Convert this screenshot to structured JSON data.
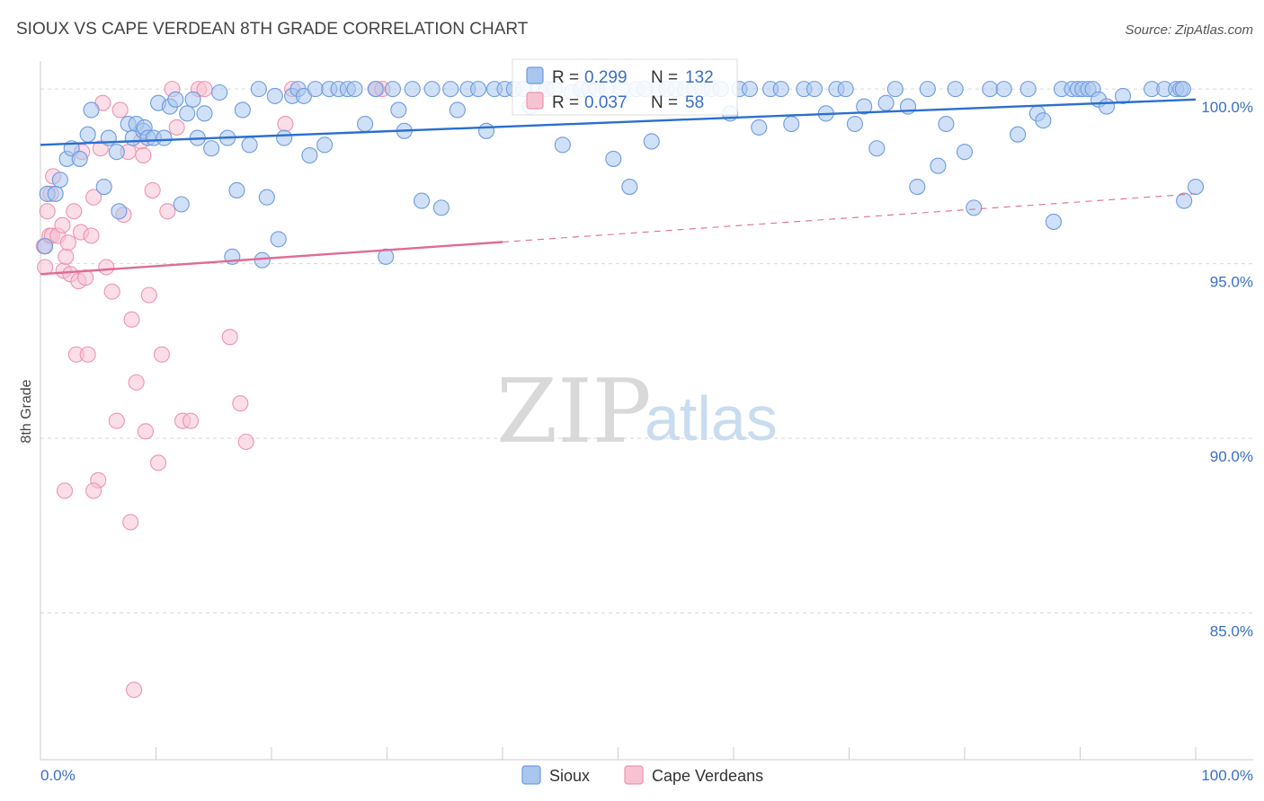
{
  "title": "SIOUX VS CAPE VERDEAN 8TH GRADE CORRELATION CHART",
  "source": "Source: ZipAtlas.com",
  "watermark": {
    "zip": "ZIP",
    "atlas": "atlas"
  },
  "legend": {
    "rows": [
      {
        "r_label": "R =",
        "r_value": "0.299",
        "n_label": "N =",
        "n_value": "132"
      },
      {
        "r_label": "R =",
        "r_value": "0.037",
        "n_label": "N =",
        "n_value": "58"
      }
    ]
  },
  "bottom_legend": [
    "Sioux",
    "Cape Verdeans"
  ],
  "colors": {
    "blue_fill": "#a9c6ee",
    "blue_stroke": "#6d9be0",
    "blue_line": "#2a6fd0",
    "pink_fill": "#f7c3d3",
    "pink_stroke": "#ee93b0",
    "pink_line": "#e06a97",
    "grid": "#d7d7d7",
    "axis_text": "#3a6fc4"
  },
  "chart_data": {
    "type": "scatter",
    "title": "SIOUX VS CAPE VERDEAN 8TH GRADE CORRELATION CHART",
    "xlabel": "",
    "ylabel": "8th Grade",
    "xlim": [
      0,
      100
    ],
    "ylim": [
      80.8,
      100.8
    ],
    "x_tick_labels": [
      "0.0%",
      "100.0%"
    ],
    "y_ticks": [
      {
        "value": 100,
        "label": "100.0%"
      },
      {
        "value": 95,
        "label": "95.0%"
      },
      {
        "value": 90,
        "label": "90.0%"
      },
      {
        "value": 85,
        "label": "85.0%"
      }
    ],
    "series": [
      {
        "name": "Sioux",
        "R": 0.299,
        "N": 132,
        "trend": {
          "x0": 0,
          "y0": 98.4,
          "x1": 100,
          "y1": 99.7,
          "dashed_from": null
        },
        "points": [
          [
            0.4,
            95.5
          ],
          [
            0.6,
            97.0
          ],
          [
            1.3,
            97.0
          ],
          [
            1.7,
            97.4
          ],
          [
            2.3,
            98.0
          ],
          [
            2.7,
            98.3
          ],
          [
            3.4,
            98.0
          ],
          [
            4.1,
            98.7
          ],
          [
            4.4,
            99.4
          ],
          [
            5.5,
            97.2
          ],
          [
            5.9,
            98.6
          ],
          [
            6.6,
            98.2
          ],
          [
            6.8,
            96.5
          ],
          [
            7.6,
            99.0
          ],
          [
            8.0,
            98.6
          ],
          [
            8.3,
            99.0
          ],
          [
            8.9,
            98.8
          ],
          [
            9.0,
            98.9
          ],
          [
            9.3,
            98.6
          ],
          [
            9.8,
            98.6
          ],
          [
            10.2,
            99.6
          ],
          [
            10.7,
            98.6
          ],
          [
            11.2,
            99.5
          ],
          [
            11.7,
            99.7
          ],
          [
            12.2,
            96.7
          ],
          [
            12.7,
            99.3
          ],
          [
            13.2,
            99.7
          ],
          [
            13.6,
            98.6
          ],
          [
            14.2,
            99.3
          ],
          [
            14.8,
            98.3
          ],
          [
            15.5,
            99.9
          ],
          [
            16.2,
            98.6
          ],
          [
            16.6,
            95.2
          ],
          [
            17.0,
            97.1
          ],
          [
            17.5,
            99.4
          ],
          [
            18.1,
            98.4
          ],
          [
            18.9,
            100.0
          ],
          [
            19.2,
            95.1
          ],
          [
            19.6,
            96.9
          ],
          [
            20.3,
            99.8
          ],
          [
            20.6,
            95.7
          ],
          [
            21.1,
            98.6
          ],
          [
            21.8,
            99.8
          ],
          [
            22.3,
            100.0
          ],
          [
            22.8,
            99.8
          ],
          [
            23.3,
            98.1
          ],
          [
            23.8,
            100.0
          ],
          [
            24.6,
            98.4
          ],
          [
            25.0,
            100.0
          ],
          [
            25.8,
            100.0
          ],
          [
            26.6,
            100.0
          ],
          [
            27.2,
            100.0
          ],
          [
            28.1,
            99.0
          ],
          [
            29.0,
            100.0
          ],
          [
            29.9,
            95.2
          ],
          [
            30.5,
            100.0
          ],
          [
            31.0,
            99.4
          ],
          [
            31.5,
            98.8
          ],
          [
            32.2,
            100.0
          ],
          [
            33.0,
            96.8
          ],
          [
            33.9,
            100.0
          ],
          [
            34.7,
            96.6
          ],
          [
            35.5,
            100.0
          ],
          [
            36.1,
            99.4
          ],
          [
            37.0,
            100.0
          ],
          [
            37.9,
            100.0
          ],
          [
            38.6,
            98.8
          ],
          [
            39.3,
            100.0
          ],
          [
            40.2,
            100.0
          ],
          [
            41.0,
            100.0
          ],
          [
            41.8,
            100.0
          ],
          [
            42.4,
            99.5
          ],
          [
            43.1,
            100.0
          ],
          [
            43.8,
            100.0
          ],
          [
            44.5,
            100.0
          ],
          [
            45.2,
            98.4
          ],
          [
            46.0,
            99.9
          ],
          [
            46.8,
            100.0
          ],
          [
            47.5,
            100.0
          ],
          [
            48.2,
            100.0
          ],
          [
            49.0,
            100.0
          ],
          [
            49.6,
            98.0
          ],
          [
            50.3,
            100.0
          ],
          [
            51.0,
            97.2
          ],
          [
            51.6,
            100.0
          ],
          [
            52.3,
            100.0
          ],
          [
            52.9,
            98.5
          ],
          [
            53.5,
            100.0
          ],
          [
            54.2,
            100.0
          ],
          [
            55.0,
            100.0
          ],
          [
            55.8,
            100.0
          ],
          [
            56.6,
            100.0
          ],
          [
            57.3,
            100.0
          ],
          [
            58.1,
            100.0
          ],
          [
            58.9,
            100.0
          ],
          [
            59.7,
            99.3
          ],
          [
            60.5,
            100.0
          ],
          [
            61.4,
            100.0
          ],
          [
            62.2,
            98.9
          ],
          [
            63.2,
            100.0
          ],
          [
            64.1,
            100.0
          ],
          [
            65.0,
            99.0
          ],
          [
            66.1,
            100.0
          ],
          [
            67.0,
            100.0
          ],
          [
            68.0,
            99.3
          ],
          [
            68.9,
            100.0
          ],
          [
            69.7,
            100.0
          ],
          [
            70.5,
            99.0
          ],
          [
            71.3,
            99.5
          ],
          [
            72.4,
            98.3
          ],
          [
            73.2,
            99.6
          ],
          [
            74.0,
            100.0
          ],
          [
            75.1,
            99.5
          ],
          [
            75.9,
            97.2
          ],
          [
            76.8,
            100.0
          ],
          [
            77.7,
            97.8
          ],
          [
            78.4,
            99.0
          ],
          [
            79.2,
            100.0
          ],
          [
            80.0,
            98.2
          ],
          [
            80.8,
            96.6
          ],
          [
            82.2,
            100.0
          ],
          [
            83.4,
            100.0
          ],
          [
            84.6,
            98.7
          ],
          [
            85.5,
            100.0
          ],
          [
            86.3,
            99.3
          ],
          [
            86.8,
            99.1
          ],
          [
            87.7,
            96.2
          ],
          [
            88.4,
            100.0
          ],
          [
            89.3,
            100.0
          ],
          [
            89.8,
            100.0
          ],
          [
            90.2,
            100.0
          ],
          [
            90.7,
            100.0
          ],
          [
            91.1,
            100.0
          ],
          [
            91.6,
            99.7
          ],
          [
            92.3,
            99.5
          ],
          [
            93.7,
            99.8
          ],
          [
            96.2,
            100.0
          ],
          [
            97.3,
            100.0
          ],
          [
            98.3,
            100.0
          ],
          [
            98.7,
            100.0
          ],
          [
            98.9,
            100.0
          ],
          [
            99.0,
            96.8
          ],
          [
            100.0,
            97.2
          ]
        ]
      },
      {
        "name": "Cape Verdeans",
        "R": 0.037,
        "N": 58,
        "trend": {
          "x0": 0,
          "y0": 94.7,
          "x1": 100,
          "y1": 97.0,
          "dashed_from": 40.0
        },
        "points": [
          [
            0.3,
            95.5
          ],
          [
            0.4,
            94.9
          ],
          [
            0.6,
            96.5
          ],
          [
            0.8,
            95.8
          ],
          [
            0.9,
            97.0
          ],
          [
            1.0,
            95.8
          ],
          [
            1.1,
            97.5
          ],
          [
            1.5,
            95.8
          ],
          [
            1.9,
            96.1
          ],
          [
            2.0,
            94.8
          ],
          [
            2.2,
            95.2
          ],
          [
            2.4,
            95.6
          ],
          [
            2.6,
            94.7
          ],
          [
            2.9,
            96.5
          ],
          [
            3.1,
            92.4
          ],
          [
            3.3,
            94.5
          ],
          [
            3.5,
            95.9
          ],
          [
            3.6,
            98.2
          ],
          [
            3.9,
            94.6
          ],
          [
            4.1,
            92.4
          ],
          [
            4.4,
            95.8
          ],
          [
            4.6,
            96.9
          ],
          [
            5.0,
            88.8
          ],
          [
            5.2,
            98.3
          ],
          [
            5.4,
            99.6
          ],
          [
            5.7,
            94.9
          ],
          [
            6.2,
            94.2
          ],
          [
            6.6,
            90.5
          ],
          [
            6.9,
            99.4
          ],
          [
            7.2,
            96.4
          ],
          [
            7.6,
            98.2
          ],
          [
            7.9,
            93.4
          ],
          [
            8.3,
            91.6
          ],
          [
            8.7,
            98.5
          ],
          [
            8.9,
            98.1
          ],
          [
            9.1,
            90.2
          ],
          [
            9.4,
            94.1
          ],
          [
            9.7,
            97.1
          ],
          [
            10.2,
            89.3
          ],
          [
            10.5,
            92.4
          ],
          [
            11.0,
            96.5
          ],
          [
            11.4,
            100.0
          ],
          [
            11.8,
            98.9
          ],
          [
            12.3,
            90.5
          ],
          [
            13.0,
            90.5
          ],
          [
            13.7,
            100.0
          ],
          [
            14.2,
            100.0
          ],
          [
            16.4,
            92.9
          ],
          [
            17.3,
            91.0
          ],
          [
            17.8,
            89.9
          ],
          [
            21.2,
            99.0
          ],
          [
            21.8,
            100.0
          ],
          [
            29.1,
            100.0
          ],
          [
            29.6,
            100.0
          ],
          [
            2.1,
            88.5
          ],
          [
            7.8,
            87.6
          ],
          [
            8.1,
            82.8
          ],
          [
            4.6,
            88.5
          ]
        ]
      }
    ]
  }
}
